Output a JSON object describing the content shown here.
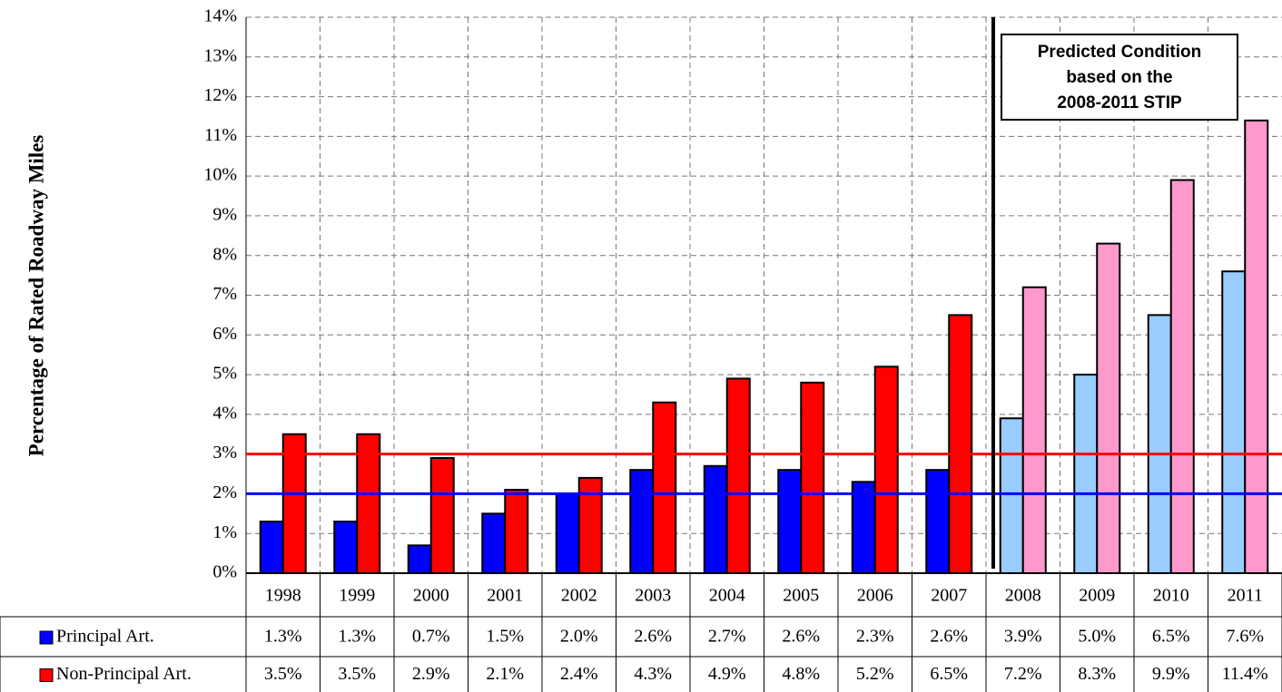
{
  "chart_data": {
    "type": "bar",
    "y_label": "Percentage of Rated Roadway Miles",
    "categories": [
      "1998",
      "1999",
      "2000",
      "2001",
      "2002",
      "2003",
      "2004",
      "2005",
      "2006",
      "2007",
      "2008",
      "2009",
      "2010",
      "2011"
    ],
    "series": [
      {
        "name": "Principal Art.",
        "color": "#0000ff",
        "predicted_color": "#99ccff",
        "values": [
          1.3,
          1.3,
          0.7,
          1.5,
          2.0,
          2.6,
          2.7,
          2.6,
          2.3,
          2.6,
          3.9,
          5.0,
          6.5,
          7.6
        ],
        "value_labels": [
          "1.3%",
          "1.3%",
          "0.7%",
          "1.5%",
          "2.0%",
          "2.6%",
          "2.7%",
          "2.6%",
          "2.3%",
          "2.6%",
          "3.9%",
          "5.0%",
          "6.5%",
          "7.6%"
        ]
      },
      {
        "name": "Non-Principal Art.",
        "color": "#ff0000",
        "predicted_color": "#ff99cc",
        "values": [
          3.5,
          3.5,
          2.9,
          2.1,
          2.4,
          4.3,
          4.9,
          4.8,
          5.2,
          6.5,
          7.2,
          8.3,
          9.9,
          11.4
        ],
        "value_labels": [
          "3.5%",
          "3.5%",
          "2.9%",
          "2.1%",
          "2.4%",
          "4.3%",
          "4.9%",
          "4.8%",
          "5.2%",
          "6.5%",
          "7.2%",
          "8.3%",
          "9.9%",
          "11.4%"
        ]
      }
    ],
    "ylim": [
      0,
      14
    ],
    "yticks": [
      {
        "value": 0,
        "label": "0%"
      },
      {
        "value": 1,
        "label": "1%"
      },
      {
        "value": 2,
        "label": "2%"
      },
      {
        "value": 3,
        "label": "3%"
      },
      {
        "value": 4,
        "label": "4%"
      },
      {
        "value": 5,
        "label": "5%"
      },
      {
        "value": 6,
        "label": "6%"
      },
      {
        "value": 7,
        "label": "7%"
      },
      {
        "value": 8,
        "label": "8%"
      },
      {
        "value": 9,
        "label": "9%"
      },
      {
        "value": 10,
        "label": "10%"
      },
      {
        "value": 11,
        "label": "11%"
      },
      {
        "value": 12,
        "label": "12%"
      },
      {
        "value": 13,
        "label": "13%"
      },
      {
        "value": 14,
        "label": "14%"
      }
    ],
    "grid": true,
    "reference_lines": [
      {
        "value": 3,
        "color": "#ff0000"
      },
      {
        "value": 2,
        "color": "#0000ff"
      }
    ],
    "annotation": {
      "lines": [
        "Predicted Condition",
        "based on the",
        "2008-2011 STIP"
      ],
      "from": "2008"
    }
  }
}
